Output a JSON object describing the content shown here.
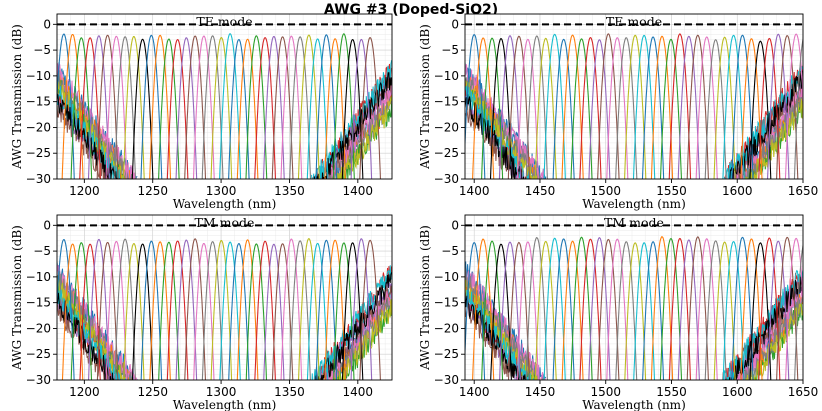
{
  "figure": {
    "title": "AWG #3 (Doped-SiO2)"
  },
  "chart_data": [
    {
      "type": "line",
      "title": "TE mode",
      "xlabel": "Wavelength (nm)",
      "ylabel": "AWG Transmission (dB)",
      "xlim": [
        1180,
        1425
      ],
      "ylim": [
        -30,
        2
      ],
      "xticks": [
        1200,
        1250,
        1300,
        1350,
        1400
      ],
      "yticks": [
        0,
        -5,
        -10,
        -15,
        -20,
        -25,
        -30
      ],
      "grid": true,
      "reference_level_db": 0,
      "channel_spacing_nm": 6.4,
      "channel_count": 36,
      "channel_start_nm": 1185,
      "highlight_channels_nm": [
        1244,
        1398
      ],
      "peak_level_db": -1.8,
      "colors": [
        "#1f77b4",
        "#ff7f0e",
        "#2ca02c",
        "#d62728",
        "#9467bd",
        "#8c564b",
        "#e377c2",
        "#7f7f7f",
        "#bcbd22",
        "#17becf"
      ]
    },
    {
      "type": "line",
      "title": "TE mode",
      "xlabel": "Wavelength (nm)",
      "ylabel": "AWG Transmission (dB)",
      "xlim": [
        1393,
        1650
      ],
      "ylim": [
        -30,
        2
      ],
      "xticks": [
        1400,
        1450,
        1500,
        1550,
        1600,
        1650
      ],
      "yticks": [
        0,
        -5,
        -10,
        -15,
        -20,
        -25,
        -30
      ],
      "grid": true,
      "reference_level_db": 0,
      "channel_spacing_nm": 6.8,
      "channel_count": 38,
      "channel_start_nm": 1400,
      "highlight_channels_nm": [
        1420,
        1615
      ],
      "peak_level_db": -1.8,
      "colors": [
        "#1f77b4",
        "#ff7f0e",
        "#2ca02c",
        "#d62728",
        "#9467bd",
        "#8c564b",
        "#e377c2",
        "#7f7f7f",
        "#bcbd22",
        "#17becf"
      ]
    },
    {
      "type": "line",
      "title": "TM mode",
      "xlabel": "Wavelength (nm)",
      "ylabel": "AWG Transmission (dB)",
      "xlim": [
        1180,
        1425
      ],
      "ylim": [
        -30,
        2
      ],
      "xticks": [
        1200,
        1250,
        1300,
        1350,
        1400
      ],
      "yticks": [
        0,
        -5,
        -10,
        -15,
        -20,
        -25,
        -30
      ],
      "grid": true,
      "reference_level_db": 0,
      "channel_spacing_nm": 6.4,
      "channel_count": 36,
      "channel_start_nm": 1185,
      "highlight_channels_nm": [
        1244,
        1398
      ],
      "peak_level_db": -2.5,
      "colors": [
        "#1f77b4",
        "#ff7f0e",
        "#2ca02c",
        "#d62728",
        "#9467bd",
        "#8c564b",
        "#e377c2",
        "#7f7f7f",
        "#bcbd22",
        "#17becf"
      ]
    },
    {
      "type": "line",
      "title": "TM mode",
      "xlabel": "Wavelength (nm)",
      "ylabel": "AWG Transmission (dB)",
      "xlim": [
        1393,
        1650
      ],
      "ylim": [
        -30,
        2
      ],
      "xticks": [
        1400,
        1450,
        1500,
        1550,
        1600,
        1650
      ],
      "yticks": [
        0,
        -5,
        -10,
        -15,
        -20,
        -25,
        -30
      ],
      "grid": true,
      "reference_level_db": 0,
      "channel_spacing_nm": 6.8,
      "channel_count": 38,
      "channel_start_nm": 1400,
      "highlight_channels_nm": [
        1420,
        1615
      ],
      "peak_level_db": -2.2,
      "colors": [
        "#1f77b4",
        "#ff7f0e",
        "#2ca02c",
        "#d62728",
        "#9467bd",
        "#8c564b",
        "#e377c2",
        "#7f7f7f",
        "#bcbd22",
        "#17becf"
      ]
    }
  ]
}
